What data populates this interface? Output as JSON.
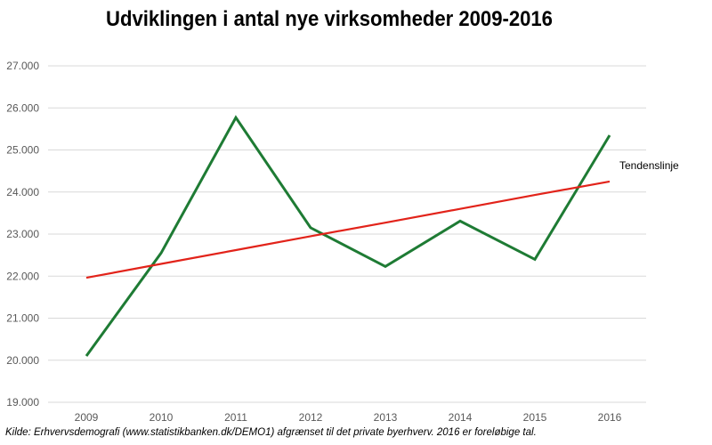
{
  "chart_data": {
    "type": "line",
    "title": "Udviklingen i antal nye virksomheder 2009-2016",
    "xlabel": "",
    "ylabel": "",
    "categories": [
      "2009",
      "2010",
      "2011",
      "2012",
      "2013",
      "2014",
      "2015",
      "2016"
    ],
    "y_ticks": [
      "19.000",
      "20.000",
      "21.000",
      "22.000",
      "23.000",
      "24.000",
      "25.000",
      "26.000",
      "27.000"
    ],
    "ylim": [
      19000,
      27000
    ],
    "grid": "horizontal",
    "legend": "none",
    "series": [
      {
        "values": [
          20100,
          22550,
          25770,
          23150,
          22230,
          23310,
          22400,
          25350
        ],
        "color": "#1e7b34"
      },
      {
        "name": "Tendenslinje",
        "values": [
          21960,
          22290,
          22620,
          22950,
          23270,
          23600,
          23930,
          24250
        ],
        "color": "#e2231a"
      }
    ],
    "annotations": [
      {
        "text": "Tendenslinje",
        "series": 1
      }
    ]
  },
  "source": "Kilde: Erhvervsdemografi (www.statistikbanken.dk/DEMO1)  afgrænset til det private byerhverv. 2016 er foreløbige tal."
}
